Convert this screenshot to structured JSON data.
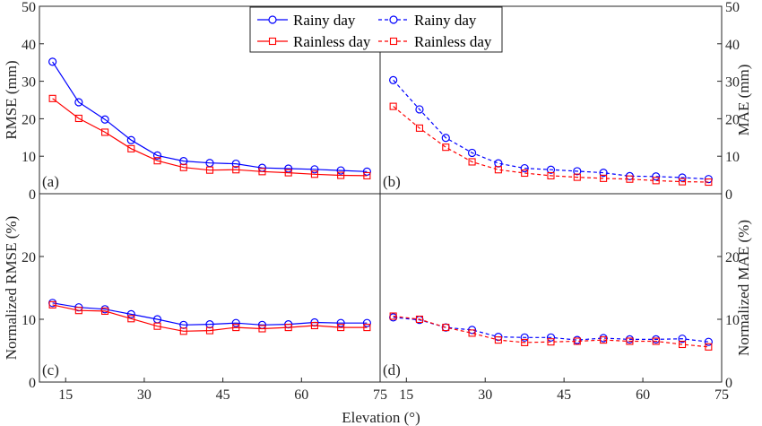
{
  "chart_data": [
    {
      "id": "a",
      "type": "line",
      "panel_label": "(a)",
      "ylabel": "RMSE (mm)",
      "ylim": [
        0,
        50
      ],
      "yticks": [
        "0",
        "10",
        "20",
        "30",
        "40",
        "50"
      ],
      "xlim": [
        10,
        75
      ],
      "x": [
        12.5,
        17.5,
        22.5,
        27.5,
        32.5,
        37.5,
        42.5,
        47.5,
        52.5,
        57.5,
        62.5,
        67.5,
        72.5
      ],
      "series": [
        {
          "name": "Rainy day",
          "color": "#0000FF",
          "marker": "circle",
          "dashed": false,
          "values": [
            35.2,
            24.4,
            19.8,
            14.3,
            10.2,
            8.7,
            8.2,
            8.0,
            6.9,
            6.7,
            6.5,
            6.2,
            5.9
          ]
        },
        {
          "name": "Rainless day",
          "color": "#FF0000",
          "marker": "square",
          "dashed": false,
          "values": [
            25.4,
            20.1,
            16.4,
            12.0,
            8.8,
            7.0,
            6.3,
            6.4,
            5.9,
            5.6,
            5.2,
            4.9,
            4.8
          ]
        }
      ]
    },
    {
      "id": "b",
      "type": "line",
      "panel_label": "(b)",
      "ylabel": "MAE (mm)",
      "ylim": [
        0,
        50
      ],
      "yticks": [
        "0",
        "10",
        "20",
        "30",
        "40",
        "50"
      ],
      "xlim": [
        10,
        75
      ],
      "x": [
        12.5,
        17.5,
        22.5,
        27.5,
        32.5,
        37.5,
        42.5,
        47.5,
        52.5,
        57.5,
        62.5,
        67.5,
        72.5
      ],
      "series": [
        {
          "name": "Rainy day",
          "color": "#0000FF",
          "marker": "circle",
          "dashed": true,
          "values": [
            30.3,
            22.5,
            14.9,
            10.9,
            8.1,
            6.8,
            6.4,
            6.0,
            5.6,
            4.7,
            4.6,
            4.3,
            3.9
          ]
        },
        {
          "name": "Rainless day",
          "color": "#FF0000",
          "marker": "square",
          "dashed": true,
          "values": [
            23.3,
            17.5,
            12.4,
            8.5,
            6.4,
            5.5,
            4.8,
            4.4,
            4.1,
            3.9,
            3.5,
            3.2,
            3.1
          ]
        }
      ]
    },
    {
      "id": "c",
      "type": "line",
      "panel_label": "(c)",
      "ylabel": "Normalized RMSE (%)",
      "ylim": [
        0,
        30
      ],
      "yticks": [
        "0",
        "10",
        "20",
        ""
      ],
      "xlim": [
        10,
        75
      ],
      "xticks": [
        "15",
        "30",
        "45",
        "60",
        "75"
      ],
      "x": [
        12.5,
        17.5,
        22.5,
        27.5,
        32.5,
        37.5,
        42.5,
        47.5,
        52.5,
        57.5,
        62.5,
        67.5,
        72.5
      ],
      "series": [
        {
          "name": "Rainy day",
          "color": "#0000FF",
          "marker": "circle",
          "dashed": false,
          "values": [
            12.6,
            11.9,
            11.6,
            10.8,
            10.0,
            9.1,
            9.2,
            9.4,
            9.1,
            9.2,
            9.5,
            9.4,
            9.4
          ]
        },
        {
          "name": "Rainless day",
          "color": "#FF0000",
          "marker": "square",
          "dashed": false,
          "values": [
            12.3,
            11.4,
            11.3,
            10.1,
            8.9,
            8.1,
            8.2,
            8.7,
            8.5,
            8.7,
            9.0,
            8.7,
            8.7
          ]
        }
      ]
    },
    {
      "id": "d",
      "type": "line",
      "panel_label": "(d)",
      "ylabel": "Normalized MAE (%)",
      "ylim": [
        0,
        30
      ],
      "yticks": [
        "0",
        "10",
        "20",
        ""
      ],
      "xlim": [
        10,
        75
      ],
      "xticks": [
        "15",
        "30",
        "45",
        "60",
        "75"
      ],
      "x": [
        12.5,
        17.5,
        22.5,
        27.5,
        32.5,
        37.5,
        42.5,
        47.5,
        52.5,
        57.5,
        62.5,
        67.5,
        72.5
      ],
      "series": [
        {
          "name": "Rainy day",
          "color": "#0000FF",
          "marker": "circle",
          "dashed": true,
          "values": [
            10.3,
            9.9,
            8.7,
            8.3,
            7.2,
            7.1,
            7.1,
            6.7,
            7.0,
            6.8,
            6.8,
            6.9,
            6.4
          ]
        },
        {
          "name": "Rainless day",
          "color": "#FF0000",
          "marker": "square",
          "dashed": true,
          "values": [
            10.5,
            10.0,
            8.7,
            7.8,
            6.7,
            6.3,
            6.4,
            6.5,
            6.7,
            6.5,
            6.5,
            6.0,
            5.6
          ]
        }
      ]
    }
  ],
  "xlabel": "Elevation (°)",
  "legend": {
    "entries": [
      {
        "name": "Rainy day",
        "color": "#0000FF",
        "marker": "circle",
        "dashed": false
      },
      {
        "name": "Rainless day",
        "color": "#FF0000",
        "marker": "square",
        "dashed": false
      },
      {
        "name": "Rainy day",
        "color": "#0000FF",
        "marker": "circle",
        "dashed": true
      },
      {
        "name": "Rainless day",
        "color": "#FF0000",
        "marker": "square",
        "dashed": true
      }
    ]
  }
}
